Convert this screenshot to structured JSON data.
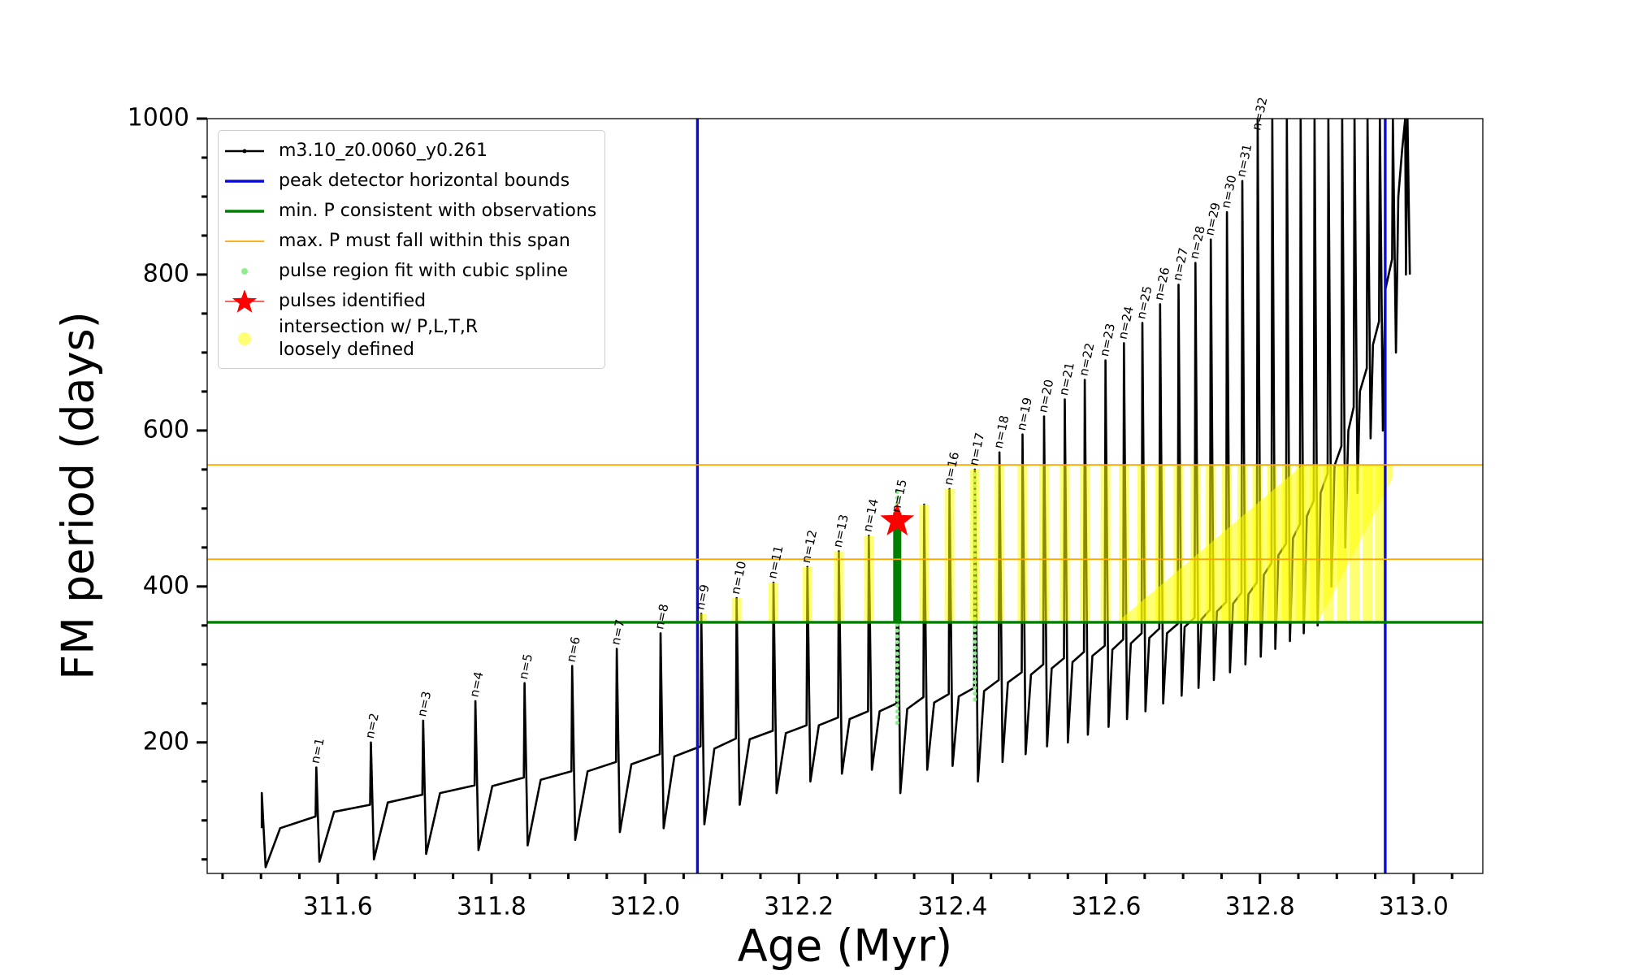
{
  "chart_data": {
    "type": "line",
    "xlabel": "Age (Myr)",
    "ylabel": "FM period (days)",
    "xlim": [
      311.43,
      313.09
    ],
    "ylim": [
      32,
      1000
    ],
    "xticks": [
      311.6,
      311.8,
      {
        "value": 312,
        "label": "312.0"
      },
      312.2,
      312.4,
      312.6,
      312.8,
      {
        "value": 313,
        "label": "313.0"
      }
    ],
    "yticks": [
      200,
      400,
      600,
      800,
      1000
    ],
    "xminorticks": [
      311.45,
      311.5,
      311.55,
      311.65,
      311.7,
      311.75,
      311.85,
      311.9,
      311.95,
      312.05,
      312.1,
      312.15,
      312.25,
      312.3,
      312.35,
      312.45,
      312.5,
      312.55,
      312.65,
      312.7,
      312.75,
      312.85,
      312.9,
      312.95,
      313.05
    ],
    "yminorticks": [
      50,
      100,
      150,
      250,
      300,
      350,
      450,
      500,
      550,
      650,
      700,
      750,
      850,
      900,
      950
    ],
    "legend": "upper left",
    "series": [
      {
        "name": "m3.10_z0.0060_y0.261",
        "color": "#000000",
        "linewidth": 2,
        "legend_marker": "line_dot",
        "x": [
          311.501,
          311.501,
          311.506,
          311.525,
          311.571,
          311.572,
          311.576,
          311.595,
          311.642,
          311.643,
          311.647,
          311.665,
          311.71,
          311.711,
          311.715,
          311.733,
          311.778,
          311.779,
          311.783,
          311.801,
          311.842,
          311.843,
          311.847,
          311.864,
          311.904,
          311.905,
          311.909,
          311.925,
          311.962,
          311.963,
          311.967,
          311.982,
          312.019,
          312.02,
          312.024,
          312.038,
          312.072,
          312.073,
          312.077,
          312.09,
          312.118,
          312.119,
          312.123,
          312.136,
          312.166,
          312.167,
          312.171,
          312.183,
          312.21,
          312.211,
          312.215,
          312.226,
          312.251,
          312.252,
          312.256,
          312.266,
          312.29,
          312.291,
          312.295,
          312.305,
          312.327,
          312.328,
          312.332,
          312.341,
          312.362,
          312.363,
          312.367,
          312.376,
          312.395,
          312.396,
          312.4,
          312.408,
          312.428,
          312.429,
          312.433,
          312.441,
          312.46,
          312.461,
          312.465,
          312.472,
          312.49,
          312.491,
          312.495,
          312.502,
          312.518,
          312.519,
          312.523,
          312.529,
          312.545,
          312.546,
          312.55,
          312.556,
          312.571,
          312.572,
          312.576,
          312.582,
          312.598,
          312.599,
          312.603,
          312.608,
          312.622,
          312.623,
          312.627,
          312.632,
          312.646,
          312.647,
          312.651,
          312.656,
          312.669,
          312.67,
          312.674,
          312.679,
          312.693,
          312.694,
          312.698,
          312.702,
          312.715,
          312.716,
          312.72,
          312.724,
          312.735,
          312.736,
          312.74,
          312.744,
          312.756,
          312.757,
          312.761,
          312.765,
          312.776,
          312.777,
          312.781,
          312.785,
          312.796,
          312.797,
          312.801,
          312.805,
          312.815,
          312.816,
          312.82,
          312.824,
          312.834,
          312.835,
          312.839,
          312.843,
          312.852,
          312.853,
          312.857,
          312.861,
          312.87,
          312.871,
          312.875,
          312.879,
          312.888,
          312.889,
          312.893,
          312.897,
          312.906,
          312.907,
          312.911,
          312.915,
          312.922,
          312.923,
          312.927,
          312.93,
          312.939,
          312.94,
          312.944,
          312.947,
          312.955,
          312.956,
          312.96,
          312.963,
          312.972,
          312.973,
          312.977,
          312.98,
          312.985,
          312.989,
          312.99,
          312.992,
          312.995
        ],
        "y": [
          90,
          135,
          40,
          90,
          105,
          168,
          47,
          111,
          120,
          200,
          50,
          123,
          133,
          228,
          57,
          135,
          145,
          253,
          62,
          144,
          155,
          276,
          68,
          152,
          163,
          298,
          75,
          163,
          175,
          320,
          85,
          172,
          185,
          340,
          90,
          182,
          195,
          365,
          95,
          192,
          205,
          385,
          120,
          204,
          215,
          405,
          135,
          212,
          222,
          425,
          150,
          222,
          232,
          445,
          160,
          230,
          240,
          465,
          165,
          240,
          250,
          490,
          135,
          243,
          258,
          505,
          165,
          251,
          262,
          525,
          170,
          259,
          270,
          550,
          150,
          266,
          280,
          572,
          175,
          277,
          290,
          595,
          185,
          287,
          300,
          618,
          195,
          295,
          308,
          640,
          200,
          303,
          316,
          665,
          210,
          311,
          324,
          690,
          220,
          319,
          332,
          712,
          230,
          327,
          340,
          738,
          240,
          334,
          346,
          762,
          250,
          340,
          352,
          787,
          260,
          348,
          360,
          815,
          270,
          358,
          370,
          845,
          280,
          368,
          380,
          880,
          290,
          378,
          392,
          920,
          300,
          390,
          405,
          1000,
          310,
          415,
          430,
          1000,
          320,
          440,
          455,
          1000,
          330,
          462,
          480,
          1000,
          340,
          490,
          510,
          1000,
          350,
          520,
          545,
          1000,
          400,
          555,
          580,
          1000,
          450,
          600,
          630,
          1000,
          520,
          650,
          680,
          1000,
          590,
          710,
          740,
          1000,
          600,
          780,
          820,
          1000,
          700,
          900,
          960,
          1000,
          800,
          1000,
          800
        ]
      },
      {
        "name": "peak detector horizontal bounds",
        "color": "#0a0adc",
        "linewidth": 2.6,
        "legend_marker": "line",
        "vlines": [
          312.068,
          312.963
        ]
      },
      {
        "name": "min. P consistent with observations",
        "color": "#007f00",
        "linewidth": 2.6,
        "legend_marker": "line",
        "hlines": [
          354
        ],
        "range_x": [
          312.328
        ],
        "range_min": [
          355
        ],
        "range_max": [
          495
        ]
      },
      {
        "name": "max. P must fall within this span",
        "color": "#ffa500",
        "linewidth": 1.3,
        "legend_marker": "line",
        "hlines": [
          435,
          556
        ]
      },
      {
        "name": "pulse region fit with cubic spline",
        "color": "#90ee90",
        "linewidth": 5,
        "legend_marker": "point",
        "range_x": [
          312.328,
          312.429
        ],
        "range_min": [
          225,
          255
        ],
        "range_max": [
          525,
          550
        ]
      },
      {
        "name": "pulses identified",
        "color": "#ff0000",
        "legend_marker": "star",
        "x": [
          312.328
        ],
        "y": [
          484
        ]
      },
      {
        "name": "intersection w/ P,L,T,R\nloosely defined",
        "color": "#ffff00",
        "alpha": 0.55,
        "linewidth": 12,
        "legend_marker": "circle",
        "range_x": [
          312.073,
          312.119,
          312.167,
          312.211,
          312.252,
          312.291,
          312.363,
          312.396,
          312.429,
          312.461,
          312.491,
          312.519,
          312.546,
          312.572,
          312.599,
          312.623,
          312.647,
          312.67,
          312.694,
          312.716,
          312.736,
          312.757,
          312.777,
          312.797,
          312.816,
          312.835,
          312.853,
          312.871,
          312.889,
          312.907,
          312.923,
          312.94,
          312.956
        ],
        "range_min": [
          354,
          354,
          354,
          354,
          354,
          354,
          354,
          354,
          354,
          354,
          354,
          354,
          354,
          354,
          354,
          354,
          354,
          354,
          354,
          354,
          354,
          354,
          354,
          354,
          354,
          354,
          354,
          354,
          354,
          354,
          354,
          354,
          354
        ],
        "range_max": [
          365,
          385,
          405,
          425,
          445,
          465,
          505,
          525,
          550,
          556,
          556,
          556,
          556,
          556,
          556,
          556,
          556,
          556,
          556,
          556,
          556,
          556,
          556,
          556,
          556,
          556,
          556,
          556,
          556,
          556,
          556,
          556,
          556
        ],
        "fill_x": [
          312.615,
          312.856,
          312.973,
          312.973,
          312.876
        ],
        "fill_y": [
          355,
          556,
          556,
          540,
          355
        ]
      }
    ],
    "annotations": [
      {
        "text": "n=1",
        "x": 311.572,
        "y": 168
      },
      {
        "text": "n=2",
        "x": 311.643,
        "y": 200
      },
      {
        "text": "n=3",
        "x": 311.711,
        "y": 228
      },
      {
        "text": "n=4",
        "x": 311.779,
        "y": 253
      },
      {
        "text": "n=5",
        "x": 311.843,
        "y": 276
      },
      {
        "text": "n=6",
        "x": 311.905,
        "y": 298
      },
      {
        "text": "n=7",
        "x": 311.963,
        "y": 320
      },
      {
        "text": "n=8",
        "x": 312.02,
        "y": 340
      },
      {
        "text": "n=9",
        "x": 312.073,
        "y": 365
      },
      {
        "text": "n=10",
        "x": 312.119,
        "y": 385
      },
      {
        "text": "n=11",
        "x": 312.167,
        "y": 405
      },
      {
        "text": "n=12",
        "x": 312.211,
        "y": 425
      },
      {
        "text": "n=13",
        "x": 312.252,
        "y": 445
      },
      {
        "text": "n=14",
        "x": 312.291,
        "y": 465
      },
      {
        "text": "n=15",
        "x": 312.328,
        "y": 490
      },
      {
        "text": "n=16",
        "x": 312.396,
        "y": 525
      },
      {
        "text": "n=17",
        "x": 312.429,
        "y": 550
      },
      {
        "text": "n=18",
        "x": 312.461,
        "y": 572
      },
      {
        "text": "n=19",
        "x": 312.491,
        "y": 595
      },
      {
        "text": "n=20",
        "x": 312.519,
        "y": 618
      },
      {
        "text": "n=21",
        "x": 312.546,
        "y": 640
      },
      {
        "text": "n=22",
        "x": 312.572,
        "y": 665
      },
      {
        "text": "n=23",
        "x": 312.599,
        "y": 690
      },
      {
        "text": "n=24",
        "x": 312.623,
        "y": 712
      },
      {
        "text": "n=25",
        "x": 312.647,
        "y": 738
      },
      {
        "text": "n=26",
        "x": 312.67,
        "y": 762
      },
      {
        "text": "n=27",
        "x": 312.694,
        "y": 787
      },
      {
        "text": "n=28",
        "x": 312.716,
        "y": 815
      },
      {
        "text": "n=29",
        "x": 312.736,
        "y": 845
      },
      {
        "text": "n=30",
        "x": 312.757,
        "y": 880
      },
      {
        "text": "n=31",
        "x": 312.777,
        "y": 920
      },
      {
        "text": "n=32",
        "x": 312.797,
        "y": 980
      }
    ]
  }
}
